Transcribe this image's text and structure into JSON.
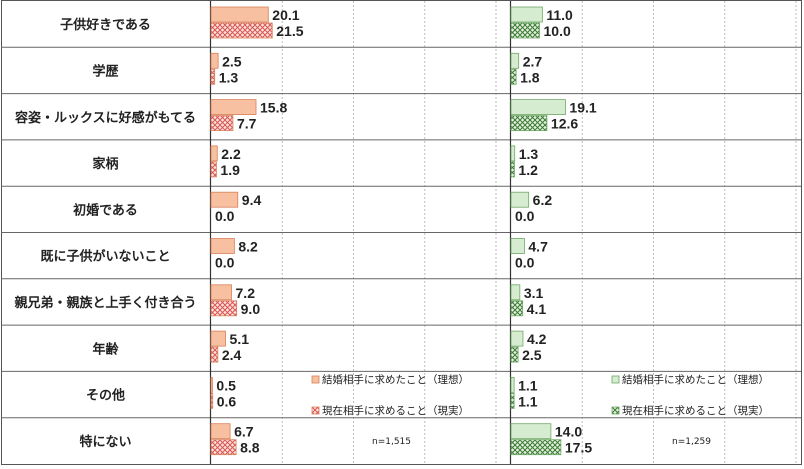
{
  "chart_data": {
    "type": "bar",
    "orientation": "horizontal",
    "categories": [
      "子供好きである",
      "学歴",
      "容姿・ルックスに好感がもてる",
      "家柄",
      "初婚である",
      "既に子供がいないこと",
      "親兄弟・親族と上手く付き合う",
      "年齢",
      "その他",
      "特にない"
    ],
    "panels": [
      {
        "note": "n=1,515",
        "series": [
          {
            "name": "結婚相手に求めたこと（理想）",
            "values": [
              20.1,
              2.5,
              15.8,
              2.2,
              9.4,
              8.2,
              7.2,
              5.1,
              0.5,
              6.7
            ]
          },
          {
            "name": "現在相手に求めること（現実）",
            "values": [
              21.5,
              1.3,
              7.7,
              1.9,
              0.0,
              0.0,
              9.0,
              2.4,
              0.6,
              8.8
            ]
          }
        ],
        "colors": {
          "fill": "#f7c0a0",
          "stroke": "#d9805a",
          "pattern_bg": "#fbe3d6",
          "pattern_fg": "#d9555a"
        }
      },
      {
        "note": "n=1,259",
        "series": [
          {
            "name": "結婚相手に求めたこと（理想）",
            "values": [
              11.0,
              2.7,
              19.1,
              1.3,
              6.2,
              4.7,
              3.1,
              4.2,
              1.1,
              14.0
            ]
          },
          {
            "name": "現在相手に求めること（現実）",
            "values": [
              10.0,
              1.8,
              12.6,
              1.2,
              0.0,
              0.0,
              4.1,
              2.5,
              1.1,
              17.5
            ]
          }
        ],
        "colors": {
          "fill": "#d6ecd0",
          "stroke": "#6fa866",
          "pattern_bg": "#e2f1de",
          "pattern_fg": "#3c7a34"
        }
      }
    ],
    "legend_position": "bottom-right",
    "xlim": [
      0,
      25
    ],
    "grid": true
  }
}
